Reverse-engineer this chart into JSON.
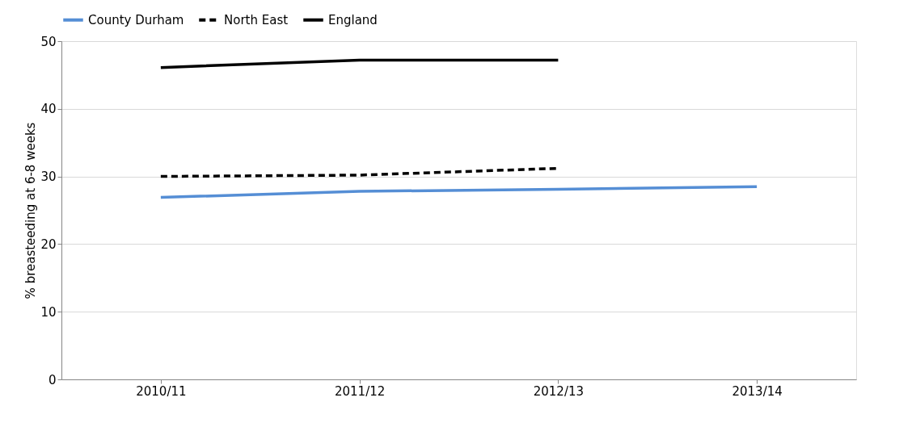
{
  "chart_data": {
    "type": "line",
    "ylabel": "% breasteeding at 6-8 weeks",
    "categories": [
      "2010/11",
      "2011/12",
      "2012/13",
      "2013/14"
    ],
    "series": [
      {
        "name": "County Durham",
        "color": "#558ed5",
        "line_style": "solid",
        "values": [
          26.9,
          27.8,
          28.1,
          28.5
        ]
      },
      {
        "name": "North East",
        "color": "#000000",
        "line_style": "dashed",
        "values": [
          30.0,
          30.2,
          31.2,
          null
        ]
      },
      {
        "name": "England",
        "color": "#000000",
        "line_style": "solid",
        "values": [
          46.1,
          47.2,
          47.2,
          null
        ]
      }
    ],
    "ylim": [
      0,
      50
    ],
    "yticks": [
      0,
      10,
      20,
      30,
      40,
      50
    ],
    "grid": "y",
    "legend": "top",
    "marker": "none"
  }
}
